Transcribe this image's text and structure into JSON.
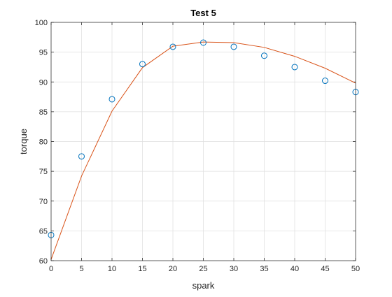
{
  "figure": {
    "title": "Test 5",
    "xlabel": "spark",
    "ylabel": "torque"
  },
  "chart_data": {
    "type": "scatter",
    "title": "Test 5",
    "xlabel": "spark",
    "ylabel": "torque",
    "xlim": [
      0,
      50
    ],
    "ylim": [
      60,
      100
    ],
    "xticks": [
      0,
      5,
      10,
      15,
      20,
      25,
      30,
      35,
      40,
      45,
      50
    ],
    "yticks": [
      60,
      65,
      70,
      75,
      80,
      85,
      90,
      95,
      100
    ],
    "grid": true,
    "legend": "none",
    "series": [
      {
        "type": "scatter",
        "marker": "circle",
        "color": "#0072BD",
        "x": [
          0,
          5,
          10,
          15,
          20,
          25,
          30,
          35,
          40,
          45,
          50
        ],
        "y": [
          64.3,
          77.5,
          87.1,
          93.0,
          95.9,
          96.6,
          95.9,
          94.4,
          92.5,
          90.2,
          88.3
        ]
      },
      {
        "type": "line",
        "color": "#D95319",
        "x": [
          0,
          5,
          10,
          15,
          20,
          25,
          30,
          35,
          40,
          45,
          50
        ],
        "y": [
          60.2,
          74.2,
          85.1,
          92.4,
          96.0,
          96.7,
          96.6,
          95.8,
          94.3,
          92.3,
          89.8
        ]
      }
    ]
  }
}
